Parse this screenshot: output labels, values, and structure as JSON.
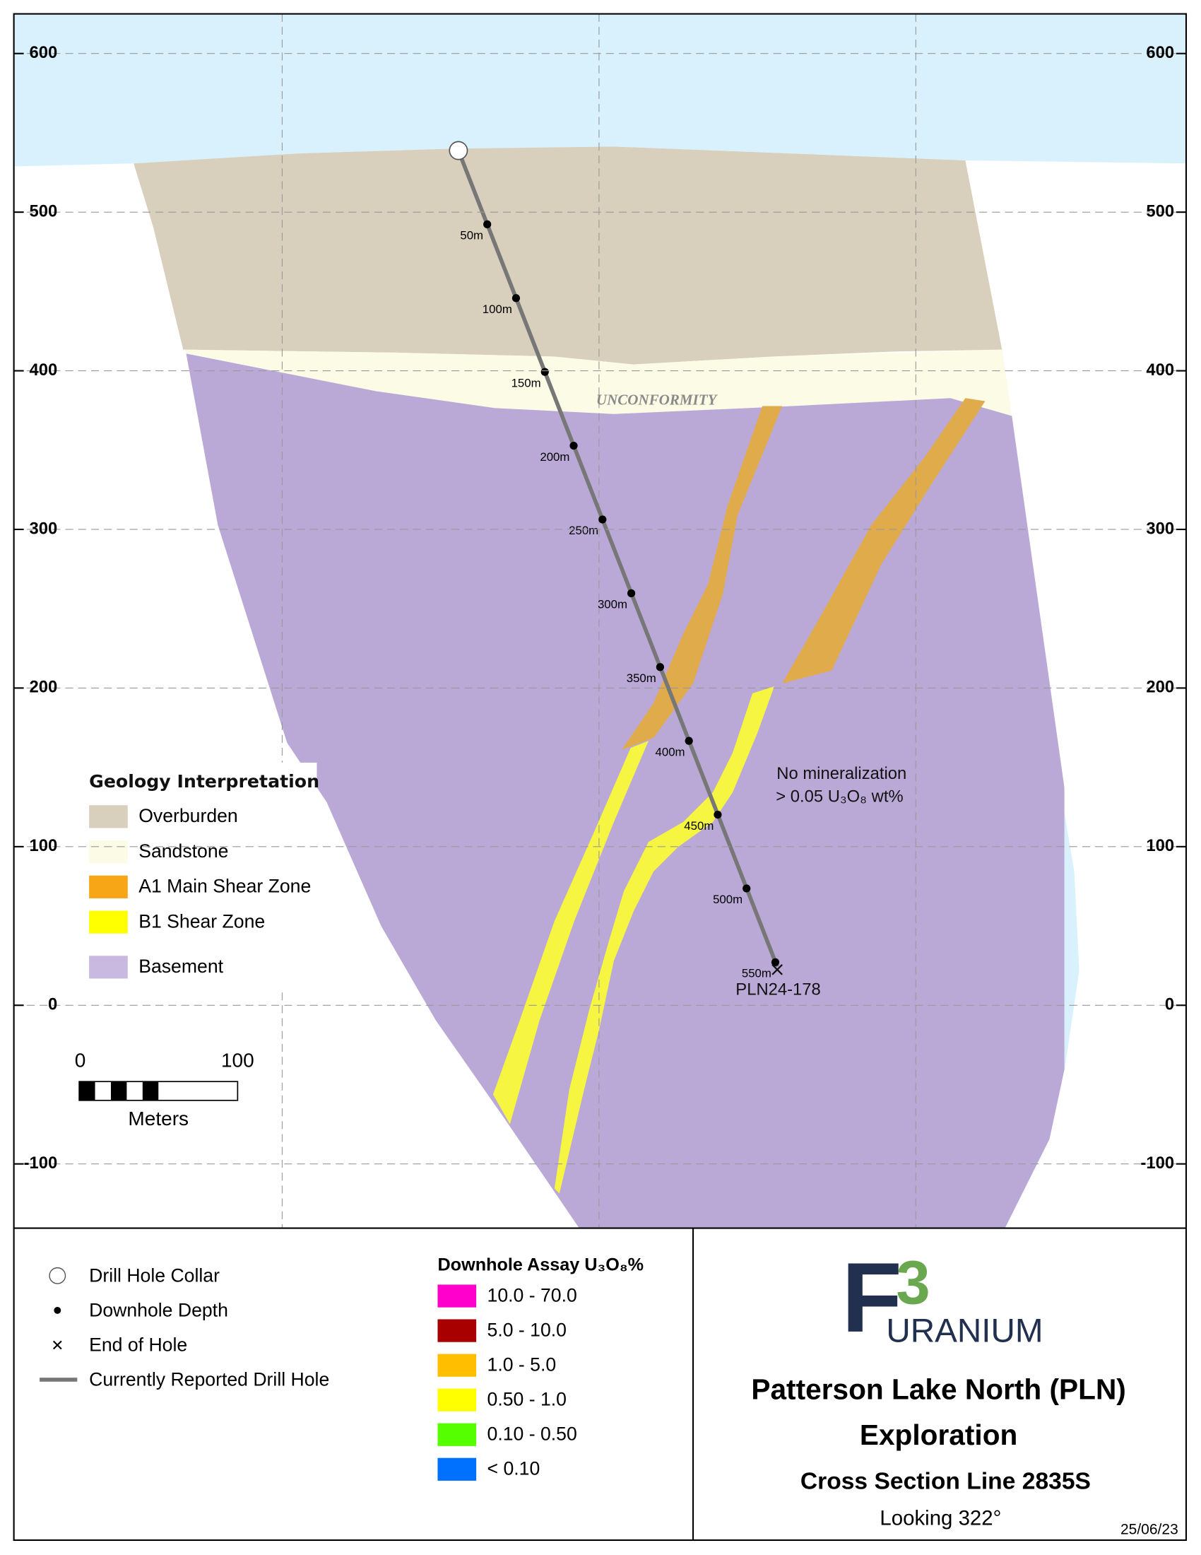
{
  "section": {
    "ylim": [
      -140.5,
      625
    ],
    "yticks": [
      600,
      500,
      400,
      300,
      200,
      100,
      0,
      -100
    ],
    "unconformity": "UNCONFORMITY",
    "note": [
      "No mineralization",
      "> 0.05 U₃O₈ wt%"
    ],
    "hole": {
      "name": "PLN24-178",
      "depths": [
        "50m",
        "100m",
        "150m",
        "200m",
        "250m",
        "300m",
        "350m",
        "400m",
        "450m",
        "500m",
        "550m"
      ]
    }
  },
  "geology_legend": {
    "title": "Geology Interpretation",
    "items": [
      {
        "label": "Overburden",
        "color": "#d9cfbd"
      },
      {
        "label": "Sandstone",
        "color": "#fbfbe6"
      },
      {
        "label": "A1 Main Shear Zone",
        "color": "#f7a616"
      },
      {
        "label": "B1 Shear Zone",
        "color": "#ffff00"
      },
      {
        "label": "Basement",
        "color": "#c9b8e0"
      }
    ]
  },
  "scale_bar": {
    "start": "0",
    "end": "100",
    "unit": "Meters"
  },
  "symbol_legend": [
    "Drill Hole Collar",
    "Downhole Depth",
    "End of Hole",
    "Currently Reported Drill Hole"
  ],
  "assay_legend": {
    "title": "Downhole Assay U₃O₈%",
    "items": [
      {
        "label": "10.0 - 70.0",
        "color": "#ff00cc"
      },
      {
        "label": "5.0 - 10.0",
        "color": "#a80000"
      },
      {
        "label": "1.0 - 5.0",
        "color": "#ffbf00"
      },
      {
        "label": "0.50 - 1.0",
        "color": "#ffff00"
      },
      {
        "label": "0.10 - 0.50",
        "color": "#55ff00"
      },
      {
        "label": "< 0.10",
        "color": "#0070ff"
      }
    ]
  },
  "logo": {
    "letter": "F",
    "number": "3",
    "word": "URANIUM"
  },
  "title": {
    "line1": "Patterson Lake North (PLN)",
    "line2": "Exploration",
    "line3": "Cross Section Line 2835S",
    "direction": "Looking 322°",
    "date": "25/06/23"
  }
}
